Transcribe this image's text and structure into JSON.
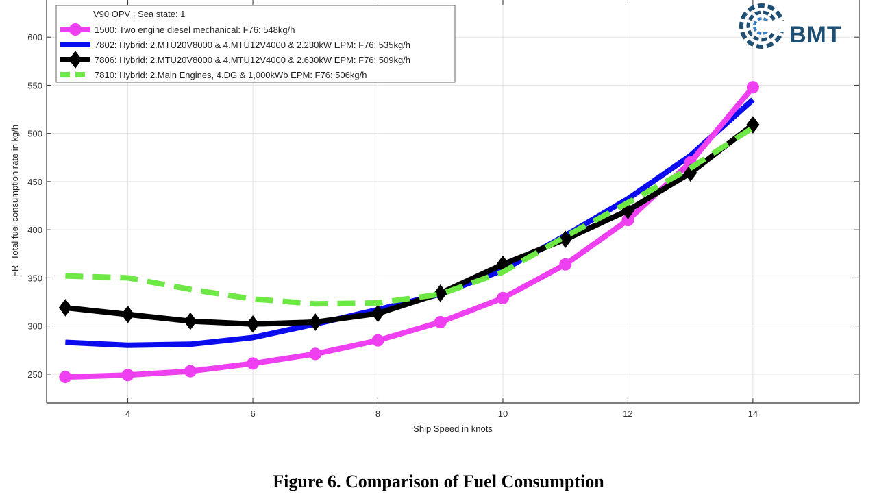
{
  "caption": "Figure 6. Comparison of Fuel Consumption",
  "logo": {
    "text": "BMT",
    "color": "#1f4e73",
    "icon": "bmt-logo-icon"
  },
  "chart_data": {
    "type": "line",
    "title": "V90 OPV : Sea state: 1",
    "xlabel": "Ship Speed in knots",
    "ylabel": "FR=Total fuel consumption rate in kg/h",
    "xlim": [
      2.7,
      15.7
    ],
    "ylim": [
      220,
      640
    ],
    "xticks": [
      4,
      6,
      8,
      10,
      12,
      14
    ],
    "yticks": [
      250,
      300,
      350,
      400,
      450,
      500,
      550,
      600
    ],
    "grid": true,
    "legend_position": "top-left",
    "series": [
      {
        "name": "1500:  Two engine diesel mechanical: F76:  548kg/h",
        "color": "#ee3ff0",
        "marker": "circle",
        "dash": "solid",
        "x": [
          3,
          4,
          5,
          6,
          7,
          8,
          9,
          10,
          11,
          12,
          13,
          14
        ],
        "y": [
          247,
          249,
          253,
          261,
          271,
          285,
          304,
          329,
          364,
          410,
          470,
          548
        ]
      },
      {
        "name": "7802:  Hybrid: 2.MTU20V8000 & 4.MTU12V4000 & 2.230kW EPM: F76:  535kg/h",
        "color": "#0b0bf0",
        "marker": "none",
        "dash": "solid",
        "x": [
          3,
          4,
          5,
          6,
          7,
          8,
          9,
          10,
          11,
          12,
          13,
          14
        ],
        "y": [
          283,
          280,
          281,
          288,
          302,
          317,
          333,
          358,
          394,
          432,
          477,
          535
        ]
      },
      {
        "name": "7806:  Hybrid: 2.MTU20V8000 & 4.MTU12V4000 & 2.630kW EPM: F76:  509kg/h",
        "color": "#000000",
        "marker": "diamond",
        "dash": "solid",
        "x": [
          3,
          4,
          5,
          6,
          7,
          8,
          9,
          10,
          11,
          12,
          13,
          14
        ],
        "y": [
          319,
          312,
          305,
          302,
          304,
          313,
          334,
          364,
          390,
          420,
          459,
          509
        ]
      },
      {
        "name": "7810:  Hybrid: 2.Main Engines, 4.DG & 1,000kWb EPM: F76:  506kg/h",
        "color": "#6ee845",
        "marker": "none",
        "dash": "dashed",
        "x": [
          3,
          4,
          5,
          6,
          7,
          8,
          9,
          10,
          11,
          12,
          13,
          14
        ],
        "y": [
          352,
          350,
          338,
          328,
          323,
          324,
          333,
          356,
          393,
          428,
          464,
          506
        ]
      }
    ]
  }
}
